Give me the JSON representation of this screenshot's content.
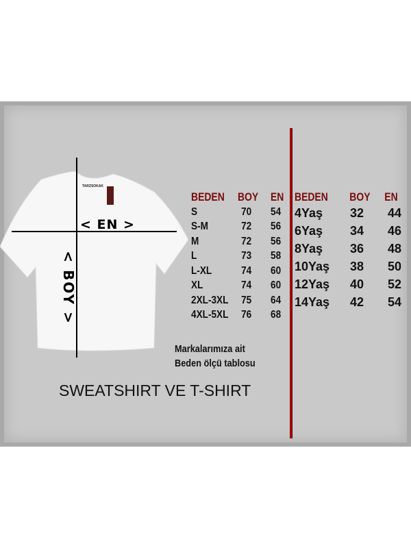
{
  "colors": {
    "panel": "#c9c9c9",
    "header_red": "#7a0c0c",
    "divider_red": "#aa0000"
  },
  "shirt": {
    "brand": "TARZSOKAK",
    "en_label": "< EN >",
    "boy_label": "< BOY >"
  },
  "adult_table": {
    "headers": [
      "BEDEN",
      "BOY",
      "EN"
    ],
    "rows": [
      [
        "S",
        "70",
        "54"
      ],
      [
        "S-M",
        "72",
        "56"
      ],
      [
        "M",
        "72",
        "56"
      ],
      [
        "L",
        "73",
        "58"
      ],
      [
        "L-XL",
        "74",
        "60"
      ],
      [
        "XL",
        "74",
        "60"
      ],
      [
        "2XL-3XL",
        "75",
        "64"
      ],
      [
        "4XL-5XL",
        "76",
        "68"
      ]
    ]
  },
  "kids_table": {
    "headers": [
      "BEDEN",
      "BOY",
      "EN"
    ],
    "rows": [
      [
        "4Yaş",
        "32",
        "44"
      ],
      [
        "6Yaş",
        "34",
        "46"
      ],
      [
        "8Yaş",
        "36",
        "48"
      ],
      [
        "10Yaş",
        "38",
        "50"
      ],
      [
        "12Yaş",
        "40",
        "52"
      ],
      [
        "14Yaş",
        "42",
        "54"
      ]
    ]
  },
  "note": {
    "line1": "Markalarımıza ait",
    "line2": "Beden ölçü tablosu"
  },
  "title": "SWEATSHIRT VE T-SHIRT"
}
